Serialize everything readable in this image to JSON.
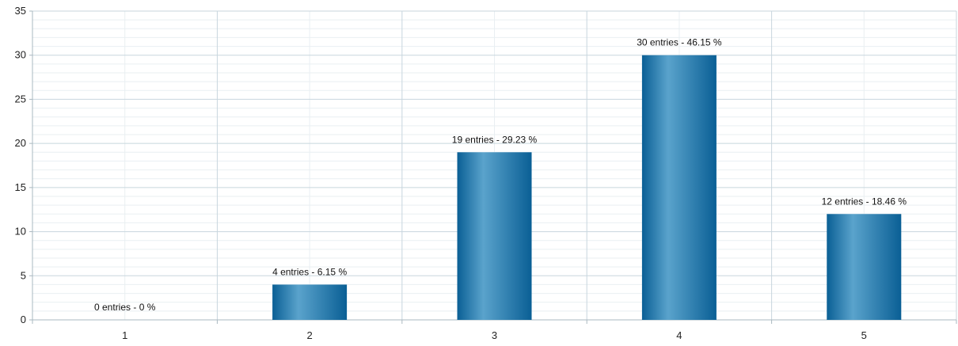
{
  "chart_data": {
    "type": "bar",
    "title": "",
    "xlabel": "",
    "ylabel": "",
    "categories": [
      "1",
      "2",
      "3",
      "4",
      "5"
    ],
    "values": [
      0,
      4,
      19,
      30,
      12
    ],
    "data_labels": [
      "0 entries - 0 %",
      "4 entries - 6.15 %",
      "19 entries - 29.23 %",
      "30 entries - 46.15 %",
      "12 entries - 18.46 %"
    ],
    "ylim": [
      0,
      35
    ],
    "yticks": [
      "0",
      "5",
      "10",
      "15",
      "20",
      "25",
      "30",
      "35"
    ],
    "ytick_values": [
      0,
      5,
      10,
      15,
      20,
      25,
      30,
      35
    ],
    "grid": true,
    "legend": "none",
    "colors": {
      "bar_dark": "#0a5f95",
      "bar_light": "#5aa3cc",
      "grid_major": "#c8d6de",
      "grid_minor": "#e9eff2",
      "axis": "#aab8c0"
    }
  }
}
